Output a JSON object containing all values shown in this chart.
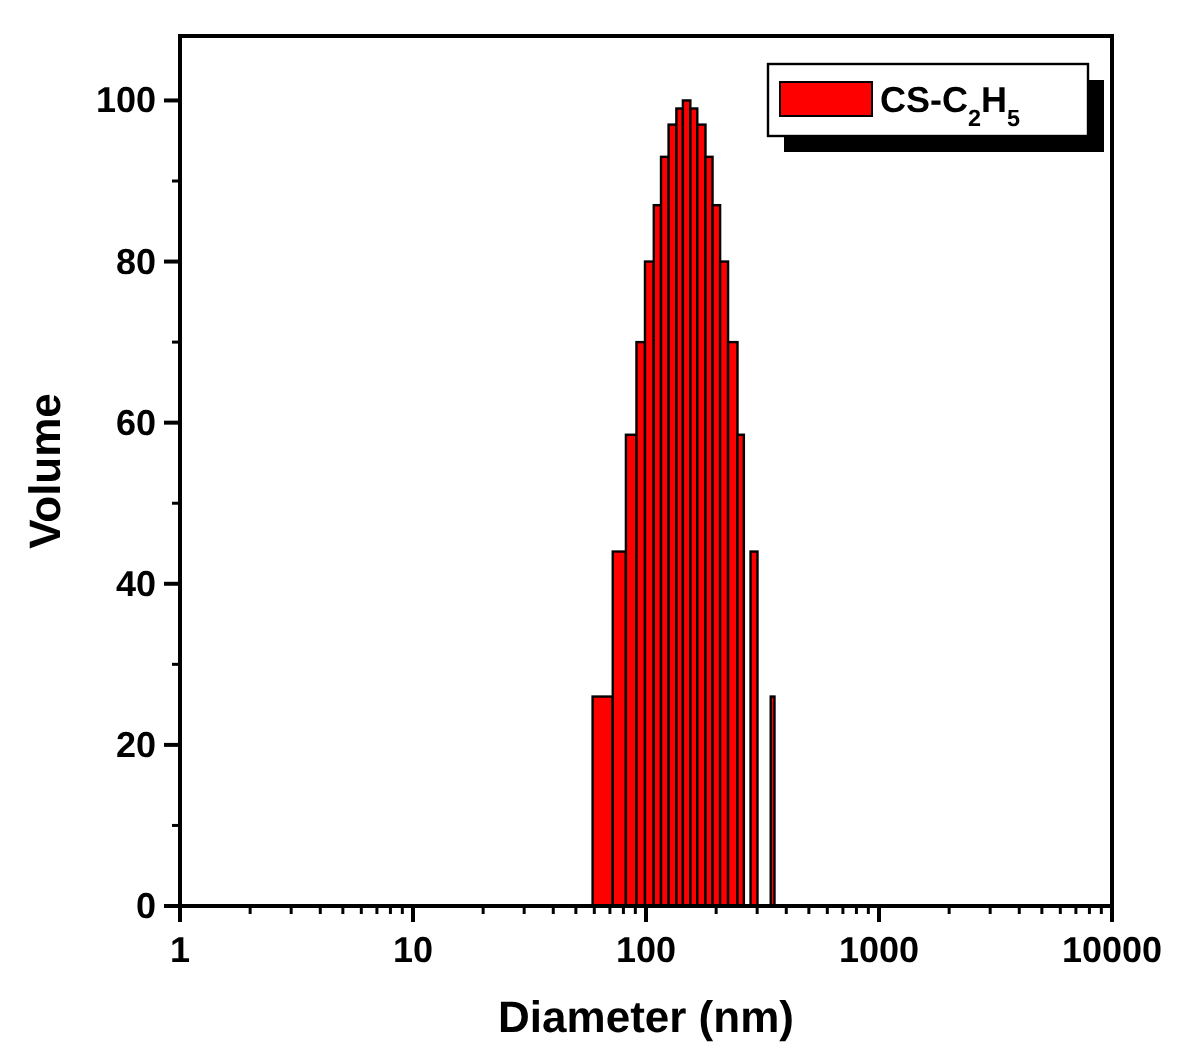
{
  "chart_data": {
    "type": "histogram",
    "xlabel": "Diameter (nm)",
    "ylabel": "Volume",
    "bins": [
      59,
      72,
      82,
      91,
      99,
      108,
      116,
      125,
      135,
      144,
      155,
      166,
      180,
      193,
      208,
      225,
      247,
      263,
      281,
      301,
      343,
      356
    ],
    "series": [
      {
        "name": "CS-C$_{2}$H$_{5}$",
        "color": "#ff0000",
        "values": [
          26,
          44,
          58.5,
          70,
          80,
          87,
          93,
          97,
          99,
          100,
          99,
          97,
          93,
          87,
          80,
          70,
          58.5,
          null,
          44,
          null,
          26
        ]
      }
    ],
    "log": "x",
    "xlim": [
      1,
      10000
    ],
    "xticks": [
      1,
      10,
      100,
      1000,
      10000
    ],
    "ylim": [
      0,
      108
    ],
    "yticks": [
      0,
      20,
      40,
      60,
      80,
      100
    ],
    "grid": false,
    "legend": "top right"
  }
}
